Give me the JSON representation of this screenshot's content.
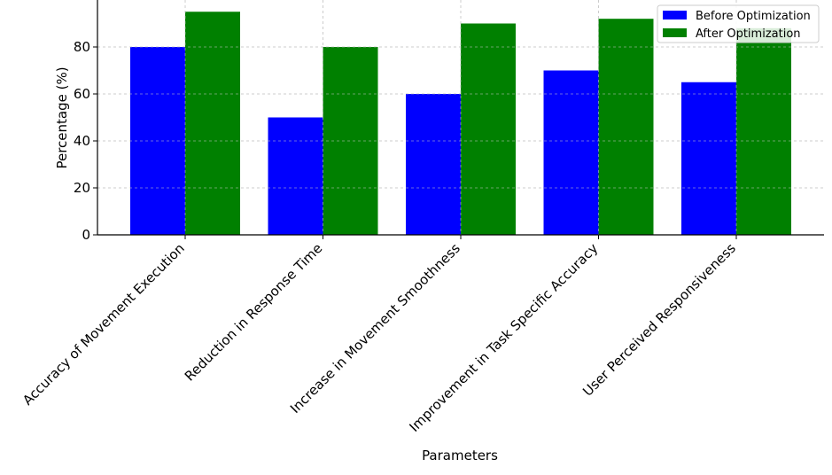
{
  "chart_data": {
    "type": "bar",
    "title": "",
    "xlabel": "Parameters",
    "ylabel": "Percentage (%)",
    "ylim": [
      0,
      100
    ],
    "yticks": [
      0,
      20,
      40,
      60,
      80
    ],
    "grid": true,
    "legend_position": "top-right",
    "categories": [
      "Accuracy of Movement Execution",
      "Reduction in Response Time",
      "Increase in Movement Smoothness",
      "Improvement in Task Specific Accuracy",
      "User Perceived Responsiveness"
    ],
    "series": [
      {
        "name": "Before Optimization",
        "color": "#0000ff",
        "values": [
          80,
          50,
          60,
          70,
          65
        ]
      },
      {
        "name": "After Optimization",
        "color": "#008000",
        "values": [
          95,
          80,
          90,
          92,
          88
        ]
      }
    ]
  }
}
